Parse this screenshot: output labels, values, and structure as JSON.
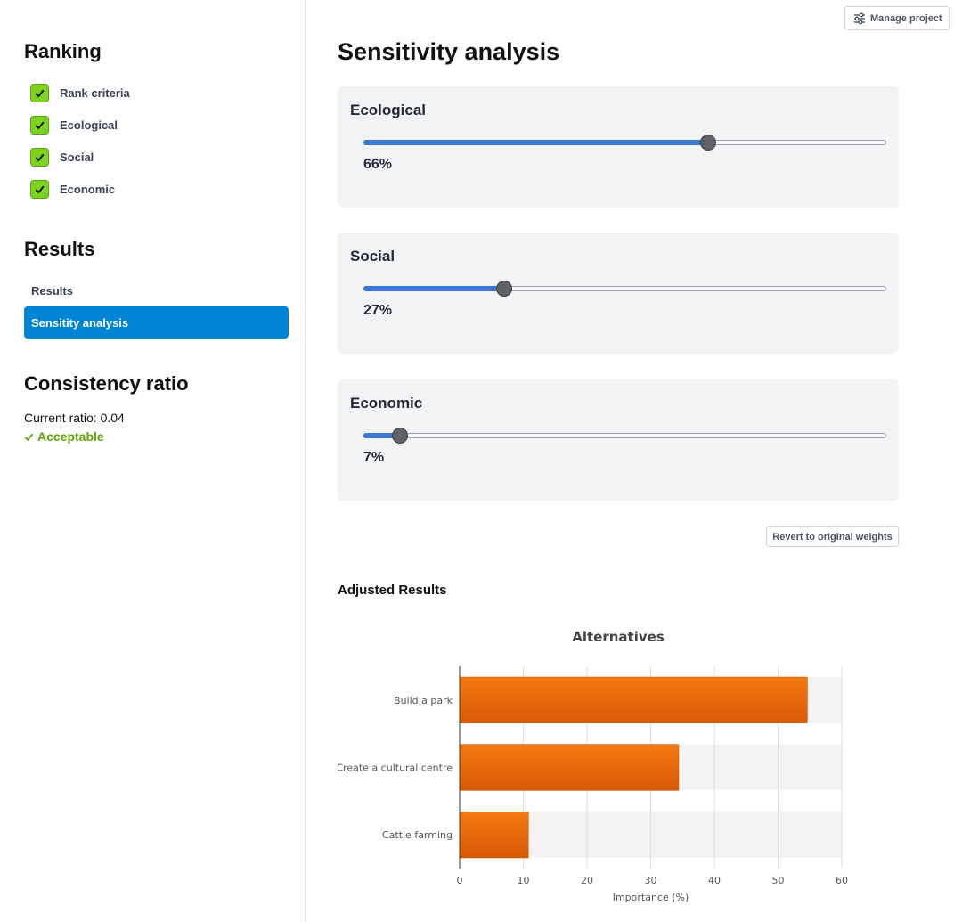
{
  "sidebar": {
    "ranking": {
      "heading": "Ranking",
      "items": [
        {
          "label": "Rank criteria",
          "checked": true
        },
        {
          "label": "Ecological",
          "checked": true
        },
        {
          "label": "Social",
          "checked": true
        },
        {
          "label": "Economic",
          "checked": true
        }
      ]
    },
    "results": {
      "heading": "Results",
      "items": [
        {
          "label": "Results",
          "active": false
        },
        {
          "label": "Sensitity analysis",
          "active": true
        }
      ]
    },
    "consistency": {
      "heading": "Consistency ratio",
      "current_ratio_text": "Current ratio: 0.04",
      "status": "Acceptable",
      "status_icon": "check-icon",
      "status_color": "#5da30a"
    }
  },
  "header": {
    "manage_project_label": "Manage project",
    "manage_project_icon": "sliders-icon"
  },
  "main": {
    "title": "Sensitivity analysis",
    "criteria": [
      {
        "name": "Ecological",
        "value": 66,
        "label": "66%"
      },
      {
        "name": "Social",
        "value": 27,
        "label": "27%"
      },
      {
        "name": "Economic",
        "value": 7,
        "label": "7%"
      }
    ],
    "revert_label": "Revert to original weights",
    "adjusted_results_heading": "Adjusted Results"
  },
  "colors": {
    "accent": "#0284d4",
    "check_green": "#7ed321",
    "slider_fill": "#3b78d4",
    "bar_color": "#f06a0a"
  },
  "chart_data": {
    "type": "bar",
    "orientation": "horizontal",
    "title": "Alternatives",
    "categories": [
      "Build a park",
      "Create a cultural centre",
      "Cattle farming"
    ],
    "values": [
      54.6,
      34.4,
      10.8
    ],
    "xlabel": "Importance (%)",
    "ylabel": "",
    "xlim": [
      0,
      60
    ],
    "xticks": [
      0,
      10,
      20,
      30,
      40,
      50,
      60
    ],
    "grid": true,
    "legend": "none"
  }
}
